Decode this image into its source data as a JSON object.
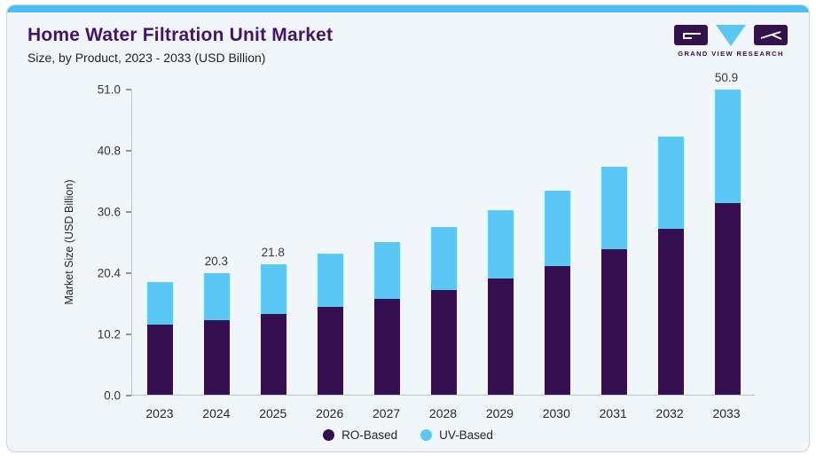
{
  "header": {
    "title": "Home Water Filtration Unit Market",
    "subtitle": "Size, by Product, 2023 - 2033 (USD Billion)"
  },
  "logo": {
    "brand": "GRAND VIEW RESEARCH",
    "block_color": "#34104d",
    "triangle_color": "#5bc8f4"
  },
  "colors": {
    "card_background": "#f1f6fa",
    "top_strip": "#49bff2",
    "title_purple": "#441468",
    "ro_based": "#351050",
    "uv_based": "#5bc8f4",
    "axis_line": "#bfc8d0"
  },
  "chart_data": {
    "type": "bar",
    "stacked": true,
    "title": "Home Water Filtration Unit Market Size, by Product, 2023 - 2033 (USD Billion)",
    "xlabel": "",
    "ylabel": "Market Size (USD Billion)",
    "ylim": [
      0,
      51.0
    ],
    "yticks": [
      0.0,
      10.2,
      20.4,
      30.6,
      40.8,
      51.0
    ],
    "grid": false,
    "legend_position": "bottom",
    "categories": [
      "2023",
      "2024",
      "2025",
      "2026",
      "2027",
      "2028",
      "2029",
      "2030",
      "2031",
      "2032",
      "2033"
    ],
    "series": [
      {
        "name": "RO-Based",
        "color": "#351050",
        "values": [
          11.7,
          12.4,
          13.4,
          14.6,
          16.0,
          17.5,
          19.3,
          21.5,
          24.2,
          27.6,
          31.9
        ]
      },
      {
        "name": "UV-Based",
        "color": "#5bc8f4",
        "values": [
          7.1,
          7.9,
          8.4,
          8.9,
          9.5,
          10.4,
          11.4,
          12.5,
          13.8,
          15.4,
          19.0
        ]
      }
    ],
    "totals": [
      18.8,
      20.3,
      21.8,
      23.5,
      25.5,
      27.9,
      30.7,
      34.0,
      38.0,
      43.0,
      50.9
    ],
    "bar_value_labels": [
      "",
      "20.3",
      "21.8",
      "",
      "",
      "",
      "",
      "",
      "",
      "",
      "50.9"
    ]
  },
  "legend": {
    "items": [
      {
        "label": "RO-Based",
        "color": "#351050"
      },
      {
        "label": "UV-Based",
        "color": "#5bc8f4"
      }
    ]
  }
}
